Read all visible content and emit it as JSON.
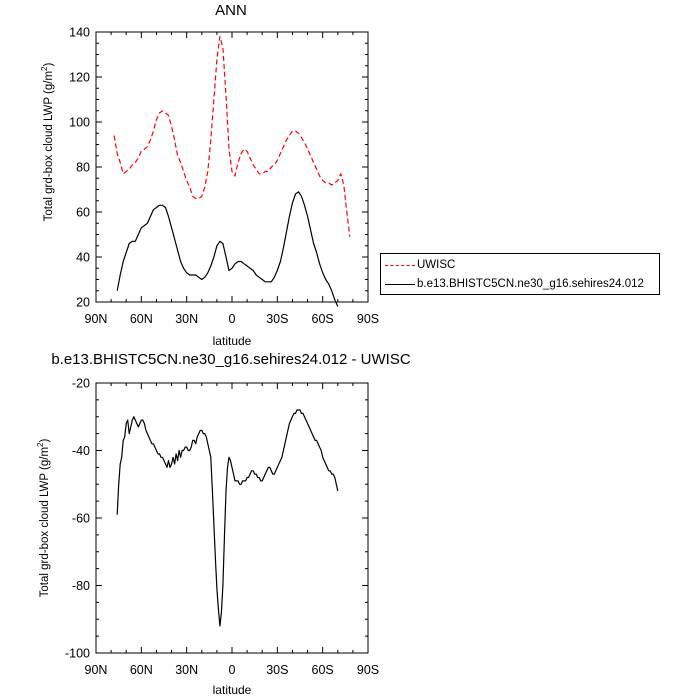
{
  "colors": {
    "uwisc": "#ff0000",
    "model": "#000000",
    "axes": "#000000"
  },
  "chart_data": [
    {
      "type": "line",
      "title": "ANN",
      "xlabel": "latitude",
      "ylabel": "Total grd-box cloud LWP (g/m",
      "ylabel_sup": "2",
      "ylabel_close": ")",
      "xlim": [
        90,
        -90
      ],
      "ylim": [
        20,
        140
      ],
      "x_tick_values": [
        90,
        60,
        30,
        0,
        -30,
        -60,
        -90
      ],
      "x_tick_labels": [
        "90N",
        "60N",
        "30N",
        "0",
        "30S",
        "60S",
        "90S"
      ],
      "y_tick_values": [
        20,
        40,
        60,
        80,
        100,
        120,
        140
      ],
      "y_tick_labels": [
        "20",
        "40",
        "60",
        "80",
        "100",
        "120",
        "140"
      ],
      "legend_position": "right",
      "series": [
        {
          "name": "UWISC",
          "style": "dashed",
          "color": "#ff0000",
          "x": [
            78,
            76,
            74,
            72,
            70,
            68,
            66,
            64,
            62,
            60,
            58,
            56,
            54,
            52,
            50,
            48,
            46,
            44,
            42,
            40,
            38,
            36,
            34,
            32,
            30,
            28,
            26,
            24,
            22,
            20,
            18,
            16,
            14,
            12,
            10,
            8,
            6,
            4,
            2,
            0,
            -2,
            -4,
            -6,
            -8,
            -10,
            -12,
            -14,
            -16,
            -18,
            -20,
            -22,
            -24,
            -26,
            -28,
            -30,
            -32,
            -34,
            -36,
            -38,
            -40,
            -42,
            -44,
            -46,
            -48,
            -50,
            -52,
            -54,
            -56,
            -58,
            -60,
            -62,
            -64,
            -66,
            -68,
            -70,
            -72,
            -74,
            -76,
            -78
          ],
          "values": [
            94,
            86,
            82,
            77,
            78,
            79,
            81,
            82,
            84,
            87,
            88,
            89,
            92,
            96,
            101,
            104,
            105,
            104,
            103,
            98,
            92,
            85,
            82,
            78,
            74,
            71,
            67,
            66,
            66,
            67,
            71,
            78,
            92,
            110,
            128,
            138,
            133,
            112,
            88,
            78,
            76,
            82,
            86,
            88,
            87,
            84,
            81,
            79,
            77,
            77,
            78,
            78,
            80,
            81,
            83,
            86,
            89,
            92,
            94,
            96,
            96,
            95,
            93,
            91,
            88,
            85,
            82,
            79,
            76,
            74,
            73,
            73,
            72,
            73,
            74,
            77,
            72,
            60,
            49
          ]
        },
        {
          "name": "b.e13.BHISTC5CN.ne30_g16.sehires24.012",
          "style": "solid",
          "color": "#000000",
          "x": [
            76,
            74,
            72,
            70,
            68,
            66,
            64,
            62,
            60,
            58,
            56,
            54,
            52,
            50,
            48,
            46,
            44,
            42,
            40,
            38,
            36,
            34,
            32,
            30,
            28,
            26,
            24,
            22,
            20,
            18,
            16,
            14,
            12,
            10,
            8,
            6,
            4,
            2,
            0,
            -2,
            -4,
            -6,
            -8,
            -10,
            -12,
            -14,
            -16,
            -18,
            -20,
            -22,
            -24,
            -26,
            -28,
            -30,
            -32,
            -34,
            -36,
            -38,
            -40,
            -42,
            -44,
            -46,
            -48,
            -50,
            -52,
            -54,
            -56,
            -58,
            -60,
            -62,
            -64,
            -66,
            -68,
            -70
          ],
          "values": [
            25,
            32,
            38,
            42,
            46,
            47,
            47,
            50,
            53,
            54,
            55,
            58,
            61,
            62,
            63,
            63,
            62,
            58,
            53,
            48,
            43,
            38,
            35,
            33,
            32,
            32,
            32,
            31,
            30,
            31,
            33,
            36,
            40,
            45,
            47,
            46,
            40,
            34,
            35,
            37,
            38,
            38,
            37,
            36,
            35,
            34,
            32,
            31,
            30,
            29,
            29,
            29,
            31,
            34,
            38,
            44,
            51,
            58,
            64,
            68,
            69,
            67,
            63,
            58,
            52,
            46,
            42,
            37,
            33,
            30,
            28,
            25,
            21,
            18
          ]
        }
      ]
    },
    {
      "type": "line",
      "title": "b.e13.BHISTC5CN.ne30_g16.sehires24.012 - UWISC",
      "xlabel": "latitude",
      "ylabel": "Total grd-box cloud LWP (g/m",
      "ylabel_sup": "2",
      "ylabel_close": ")",
      "xlim": [
        90,
        -90
      ],
      "ylim": [
        -100,
        -20
      ],
      "x_tick_values": [
        90,
        60,
        30,
        0,
        -30,
        -60,
        -90
      ],
      "x_tick_labels": [
        "90N",
        "60N",
        "30N",
        "0",
        "30S",
        "60S",
        "90S"
      ],
      "y_tick_values": [
        -100,
        -80,
        -60,
        -40,
        -20
      ],
      "y_tick_labels": [
        "-100",
        "-80",
        "-60",
        "-40",
        "-20"
      ],
      "series": [
        {
          "style": "solid",
          "color": "#000000",
          "x": [
            76,
            75,
            74,
            73,
            72,
            71,
            70,
            69,
            68,
            67,
            66,
            65,
            64,
            63,
            62,
            61,
            60,
            59,
            58,
            57,
            56,
            55,
            54,
            53,
            52,
            51,
            50,
            49,
            48,
            47,
            46,
            45,
            44,
            43,
            42,
            41,
            40,
            39,
            38,
            37,
            36,
            35,
            34,
            33,
            32,
            31,
            30,
            29,
            28,
            27,
            26,
            25,
            24,
            23,
            22,
            21,
            20,
            19,
            18,
            17,
            16,
            15,
            14,
            13,
            12,
            11,
            10,
            9,
            8,
            7,
            6,
            5,
            4,
            3,
            2,
            1,
            0,
            -1,
            -2,
            -3,
            -4,
            -5,
            -6,
            -7,
            -8,
            -9,
            -10,
            -11,
            -12,
            -13,
            -14,
            -15,
            -16,
            -17,
            -18,
            -19,
            -20,
            -21,
            -22,
            -23,
            -24,
            -25,
            -26,
            -27,
            -28,
            -29,
            -30,
            -31,
            -32,
            -33,
            -34,
            -35,
            -36,
            -37,
            -38,
            -39,
            -40,
            -41,
            -42,
            -43,
            -44,
            -45,
            -46,
            -47,
            -48,
            -49,
            -50,
            -51,
            -52,
            -53,
            -54,
            -55,
            -56,
            -57,
            -58,
            -59,
            -60,
            -61,
            -62,
            -63,
            -64,
            -65,
            -66,
            -67,
            -68,
            -69,
            -70
          ],
          "values": [
            -59,
            -50,
            -44,
            -42,
            -37,
            -36,
            -32,
            -31,
            -35,
            -33,
            -31,
            -30,
            -31,
            -32,
            -33,
            -32,
            -31,
            -31,
            -32,
            -34,
            -35,
            -36,
            -37,
            -38,
            -38,
            -39,
            -40,
            -41,
            -41,
            -42,
            -42,
            -43,
            -44,
            -45,
            -43,
            -45,
            -44,
            -42,
            -44,
            -41,
            -43,
            -40,
            -42,
            -40,
            -40,
            -39,
            -39,
            -40,
            -40,
            -39,
            -37,
            -37,
            -38,
            -36,
            -35,
            -34,
            -34,
            -35,
            -35,
            -36,
            -38,
            -40,
            -42,
            -52,
            -62,
            -72,
            -81,
            -87,
            -92,
            -88,
            -80,
            -66,
            -52,
            -45,
            -42,
            -43,
            -45,
            -47,
            -49,
            -49,
            -49,
            -50,
            -50,
            -49,
            -49,
            -49,
            -48,
            -48,
            -47,
            -46,
            -46,
            -47,
            -47,
            -48,
            -48,
            -49,
            -49,
            -48,
            -47,
            -46,
            -45,
            -45,
            -46,
            -47,
            -47,
            -46,
            -45,
            -44,
            -43,
            -42,
            -40,
            -38,
            -36,
            -34,
            -32,
            -31,
            -30,
            -29,
            -29,
            -28,
            -28,
            -28,
            -29,
            -29,
            -30,
            -31,
            -32,
            -33,
            -34,
            -35,
            -36,
            -37,
            -37,
            -38,
            -39,
            -40,
            -42,
            -43,
            -44,
            -45,
            -46,
            -46,
            -47,
            -47,
            -48,
            -50,
            -52
          ]
        }
      ]
    }
  ]
}
